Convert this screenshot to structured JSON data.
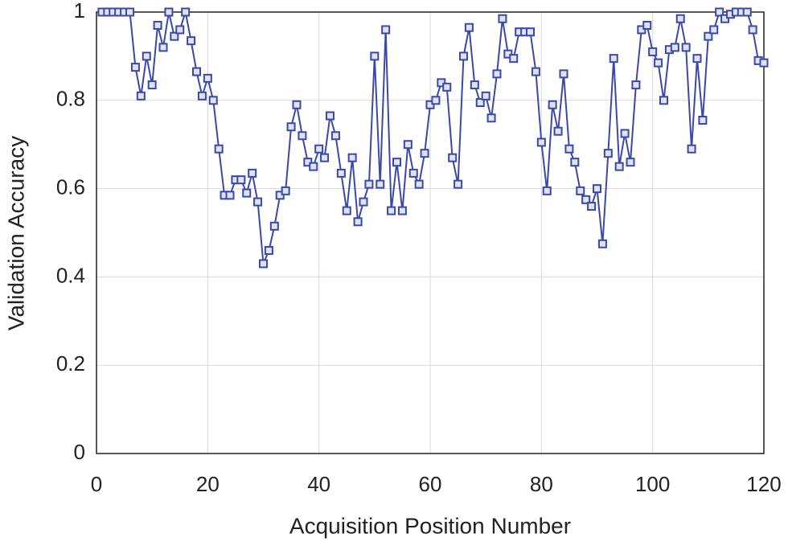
{
  "chart_data": {
    "type": "line",
    "xlabel": "Acquisition Position Number",
    "ylabel": "Validation Accuracy",
    "x": [
      1,
      2,
      3,
      4,
      5,
      6,
      7,
      8,
      9,
      10,
      11,
      12,
      13,
      14,
      15,
      16,
      17,
      18,
      19,
      20,
      21,
      22,
      23,
      24,
      25,
      26,
      27,
      28,
      29,
      30,
      31,
      32,
      33,
      34,
      35,
      36,
      37,
      38,
      39,
      40,
      41,
      42,
      43,
      44,
      45,
      46,
      47,
      48,
      49,
      50,
      51,
      52,
      53,
      54,
      55,
      56,
      57,
      58,
      59,
      60,
      61,
      62,
      63,
      64,
      65,
      66,
      67,
      68,
      69,
      70,
      71,
      72,
      73,
      74,
      75,
      76,
      77,
      78,
      79,
      80,
      81,
      82,
      83,
      84,
      85,
      86,
      87,
      88,
      89,
      90,
      91,
      92,
      93,
      94,
      95,
      96,
      97,
      98,
      99,
      100,
      101,
      102,
      103,
      104,
      105,
      106,
      107,
      108,
      109,
      110,
      111,
      112,
      113,
      114,
      115,
      116,
      117,
      118,
      119,
      120
    ],
    "series": [
      {
        "color": "#3b48a8",
        "values": [
          1,
          1,
          1,
          1,
          1,
          1,
          0.875,
          0.81,
          0.9,
          0.835,
          0.97,
          0.92,
          1,
          0.945,
          0.96,
          1,
          0.935,
          0.865,
          0.81,
          0.85,
          0.8,
          0.69,
          0.585,
          0.585,
          0.62,
          0.62,
          0.59,
          0.635,
          0.57,
          0.43,
          0.46,
          0.515,
          0.585,
          0.595,
          0.74,
          0.79,
          0.72,
          0.66,
          0.65,
          0.69,
          0.67,
          0.765,
          0.72,
          0.635,
          0.55,
          0.67,
          0.525,
          0.57,
          0.61,
          0.9,
          0.61,
          0.96,
          0.55,
          0.66,
          0.55,
          0.7,
          0.635,
          0.61,
          0.68,
          0.79,
          0.8,
          0.84,
          0.83,
          0.67,
          0.61,
          0.9,
          0.965,
          0.835,
          0.795,
          0.81,
          0.76,
          0.86,
          0.985,
          0.905,
          0.895,
          0.955,
          0.955,
          0.955,
          0.865,
          0.705,
          0.595,
          0.79,
          0.73,
          0.86,
          0.69,
          0.66,
          0.595,
          0.575,
          0.56,
          0.6,
          0.475,
          0.68,
          0.895,
          0.65,
          0.725,
          0.66,
          0.835,
          0.96,
          0.97,
          0.91,
          0.885,
          0.8,
          0.915,
          0.92,
          0.985,
          0.92,
          0.69,
          0.895,
          0.755,
          0.945,
          0.96,
          1,
          0.985,
          0.995,
          1,
          1,
          1,
          0.96,
          0.89,
          0.885
        ]
      }
    ],
    "xlim": [
      0,
      120
    ],
    "xticks": [
      0,
      20,
      40,
      60,
      80,
      100,
      120
    ],
    "ylim": [
      0,
      1
    ],
    "yticks": [
      0,
      0.2,
      0.4,
      0.6,
      0.8,
      1
    ],
    "grid": true,
    "marker": "square"
  }
}
